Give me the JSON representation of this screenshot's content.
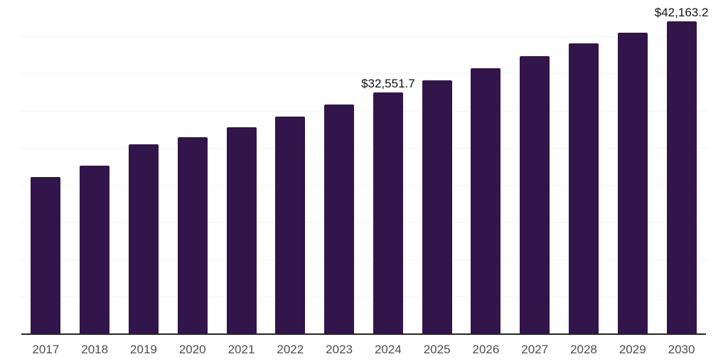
{
  "chart_data": {
    "type": "bar",
    "title": "",
    "xlabel": "",
    "ylabel": "",
    "categories": [
      "2017",
      "2018",
      "2019",
      "2020",
      "2021",
      "2022",
      "2023",
      "2024",
      "2025",
      "2026",
      "2027",
      "2028",
      "2029",
      "2030"
    ],
    "values": [
      21200,
      22650,
      25600,
      26550,
      27900,
      29340,
      30970,
      32551.7,
      34180,
      35780,
      37450,
      39140,
      40620,
      42163.2
    ],
    "data_labels": [
      {
        "category": "2024",
        "text": "$32,551.7"
      },
      {
        "category": "2030",
        "text": "$42,163.2"
      }
    ],
    "ylim": [
      0,
      45000
    ],
    "gridline_step": 5000,
    "grid": "horizontal-only",
    "legend": "none",
    "colors": {
      "bar": "#32154a",
      "gridline": "#f4f4f6",
      "axis_line": "#262626",
      "tick_label": "#4d4d4d",
      "data_label": "#111111",
      "background": "#ffffff"
    }
  }
}
